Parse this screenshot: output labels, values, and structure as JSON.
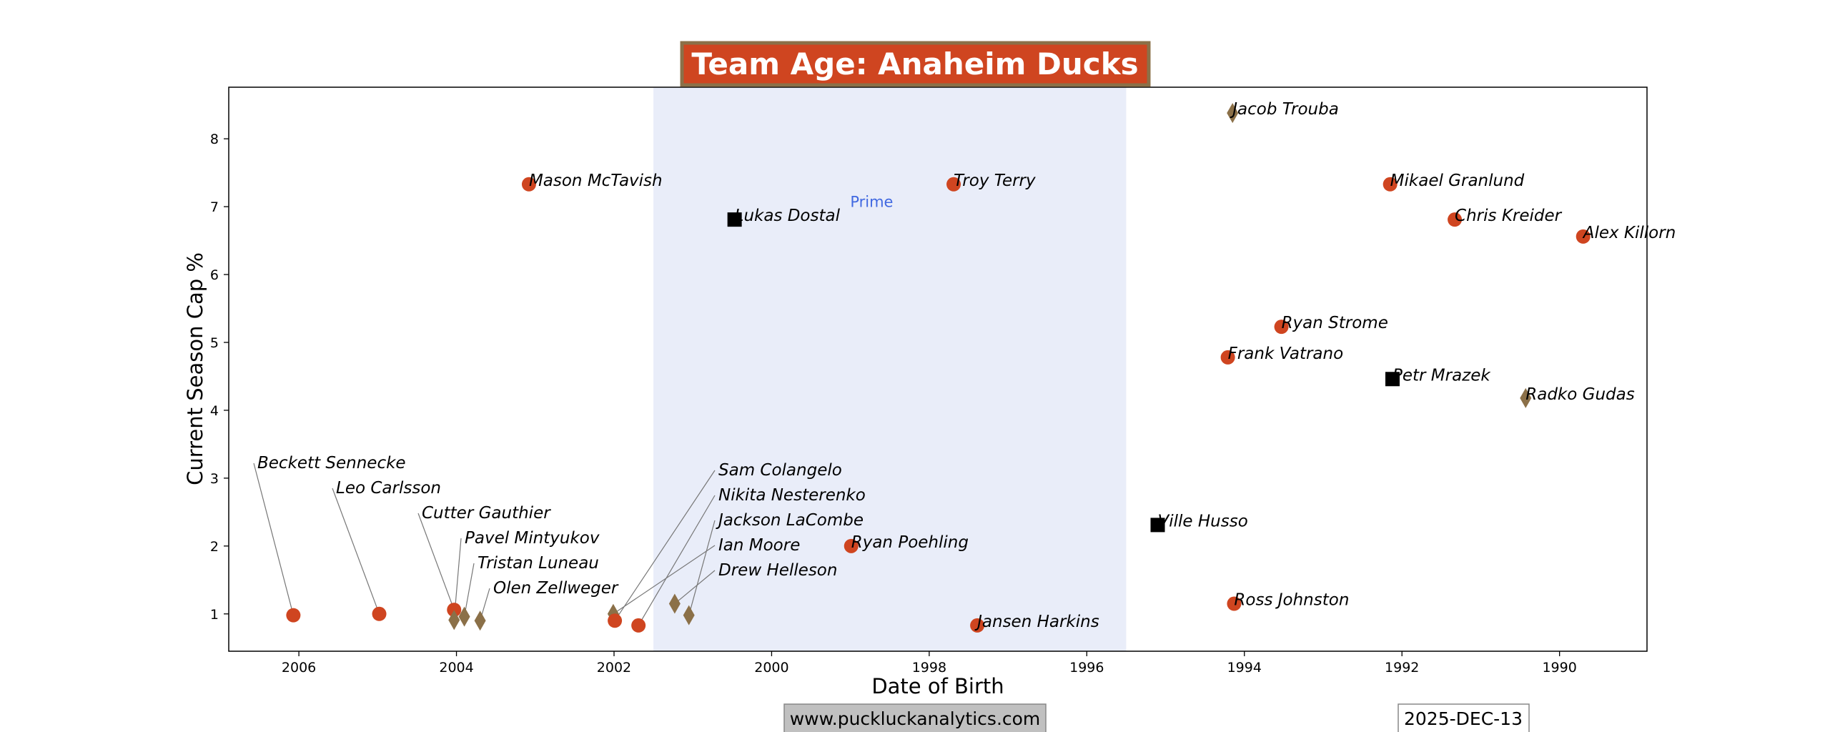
{
  "chart_data": {
    "type": "scatter",
    "title": "Team Age: Anaheim Ducks",
    "xlabel": "Date of Birth",
    "ylabel": "Current Season Cap %",
    "xlim": [
      2006.89,
      1988.89
    ],
    "ylim": [
      0.45,
      8.76
    ],
    "x_reversed": true,
    "grid": false,
    "xticks": [
      2006,
      2004,
      2002,
      2000,
      1998,
      1996,
      1994,
      1992,
      1990
    ],
    "yticks": [
      1,
      2,
      3,
      4,
      5,
      6,
      7,
      8
    ],
    "prime_band": {
      "label": "Prime",
      "x_range": [
        2001.5,
        1995.5
      ],
      "label_x": 1998.73,
      "label_y": 7.07,
      "color": "#e9edf9",
      "label_color": "#4169e1"
    },
    "marker_colors": {
      "circle": "#cf4520",
      "diamond": "#8b7048",
      "square": "#000000"
    },
    "points": [
      {
        "name": "Beckett Sennecke",
        "x": 2006.07,
        "y": 0.98,
        "marker": "circle"
      },
      {
        "name": "Leo Carlsson",
        "x": 2004.98,
        "y": 1.0,
        "marker": "circle"
      },
      {
        "name": "Cutter Gauthier",
        "x": 2004.03,
        "y": 1.06,
        "marker": "circle"
      },
      {
        "name": "Pavel Mintyukov",
        "x": 2004.03,
        "y": 0.91,
        "marker": "diamond"
      },
      {
        "name": "Tristan Luneau",
        "x": 2003.9,
        "y": 0.96,
        "marker": "diamond"
      },
      {
        "name": "Olen Zellweger",
        "x": 2003.7,
        "y": 0.9,
        "marker": "diamond"
      },
      {
        "name": "Mason McTavish",
        "x": 2003.08,
        "y": 7.33,
        "marker": "circle"
      },
      {
        "name": "Ian Moore",
        "x": 2002.01,
        "y": 1.0,
        "marker": "diamond"
      },
      {
        "name": "Sam Colangelo",
        "x": 2001.99,
        "y": 0.9,
        "marker": "circle"
      },
      {
        "name": "Nikita Nesterenko",
        "x": 2001.69,
        "y": 0.83,
        "marker": "circle"
      },
      {
        "name": "Drew Helleson",
        "x": 2001.23,
        "y": 1.15,
        "marker": "diamond"
      },
      {
        "name": "Jackson LaCombe",
        "x": 2001.05,
        "y": 0.98,
        "marker": "diamond"
      },
      {
        "name": "Lukas Dostal",
        "x": 2000.47,
        "y": 6.81,
        "marker": "square"
      },
      {
        "name": "Ryan Poehling",
        "x": 1998.99,
        "y": 2.0,
        "marker": "circle"
      },
      {
        "name": "Troy Terry",
        "x": 1997.69,
        "y": 7.33,
        "marker": "circle"
      },
      {
        "name": "Jansen Harkins",
        "x": 1997.39,
        "y": 0.83,
        "marker": "circle"
      },
      {
        "name": "Ville Husso",
        "x": 1995.1,
        "y": 2.31,
        "marker": "square"
      },
      {
        "name": "Jacob Trouba",
        "x": 1994.15,
        "y": 8.38,
        "marker": "diamond"
      },
      {
        "name": "Frank Vatrano",
        "x": 1994.21,
        "y": 4.78,
        "marker": "circle"
      },
      {
        "name": "Ross Johnston",
        "x": 1994.13,
        "y": 1.15,
        "marker": "circle"
      },
      {
        "name": "Ryan Strome",
        "x": 1993.53,
        "y": 5.23,
        "marker": "circle"
      },
      {
        "name": "Mikael Granlund",
        "x": 1992.15,
        "y": 7.33,
        "marker": "circle"
      },
      {
        "name": "Petr Mrazek",
        "x": 1992.12,
        "y": 4.46,
        "marker": "square"
      },
      {
        "name": "Chris Kreider",
        "x": 1991.33,
        "y": 6.81,
        "marker": "circle"
      },
      {
        "name": "Radko Gudas",
        "x": 1990.43,
        "y": 4.18,
        "marker": "diamond"
      },
      {
        "name": "Alex Killorn",
        "x": 1989.7,
        "y": 6.56,
        "marker": "circle"
      }
    ]
  },
  "footer": {
    "website": "www.puckluckanalytics.com",
    "date": "2025-DEC-13"
  },
  "colors": {
    "title_bg": "#cf4520",
    "title_border": "#8b7048",
    "website_bg": "#c0c0c0"
  }
}
